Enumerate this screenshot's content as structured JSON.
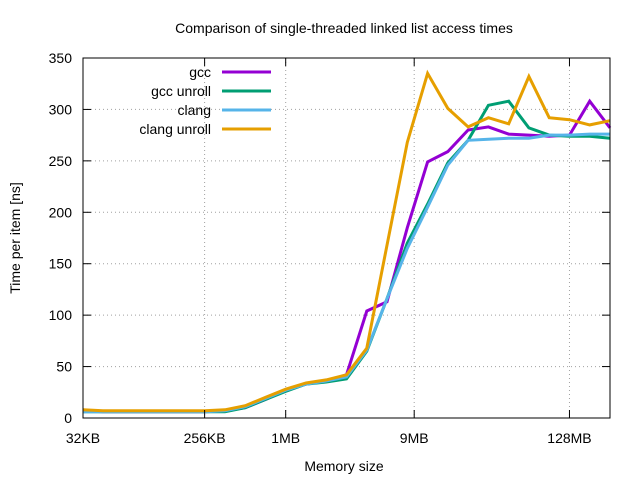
{
  "chart_data": {
    "type": "line",
    "title": "Comparison of single-threaded linked list access times",
    "xlabel": "Memory size",
    "ylabel": "Time per item [ns]",
    "xscale": "log2",
    "x_unit": "KB",
    "xlim": [
      32,
      262144
    ],
    "ylim": [
      0,
      350
    ],
    "grid": true,
    "legend_position": "top-left",
    "x_ticks": [
      {
        "value": 32,
        "label": "32KB"
      },
      {
        "value": 256,
        "label": "256KB"
      },
      {
        "value": 1024,
        "label": "1MB"
      },
      {
        "value": 9216,
        "label": "9MB"
      },
      {
        "value": 131072,
        "label": "128MB"
      }
    ],
    "y_ticks": [
      0,
      50,
      100,
      150,
      200,
      250,
      300,
      350
    ],
    "x": [
      32,
      45,
      64,
      91,
      128,
      181,
      256,
      362,
      512,
      724,
      1024,
      1448,
      2048,
      2896,
      4096,
      5793,
      8192,
      11585,
      16384,
      23170,
      32768,
      46341,
      65536,
      92682,
      131072,
      185364,
      262144
    ],
    "series": [
      {
        "name": "gcc",
        "color": "#9400d3",
        "values": [
          7,
          6,
          6,
          6,
          6,
          6,
          6,
          7,
          10,
          18,
          27,
          33,
          36,
          42,
          104,
          113,
          185,
          249,
          259,
          280,
          283,
          276,
          275,
          274,
          275,
          308,
          282
        ]
      },
      {
        "name": "gcc unroll",
        "color": "#009e73",
        "values": [
          6,
          6,
          6,
          6,
          6,
          6,
          6,
          6,
          10,
          18,
          26,
          33,
          35,
          38,
          65,
          116,
          170,
          208,
          248,
          270,
          304,
          308,
          282,
          275,
          274,
          274,
          272
        ]
      },
      {
        "name": "clang",
        "color": "#56b4e9",
        "values": [
          6,
          6,
          6,
          6,
          6,
          6,
          6,
          7,
          11,
          19,
          27,
          33,
          36,
          40,
          66,
          116,
          165,
          205,
          246,
          270,
          271,
          272,
          272,
          275,
          275,
          276,
          276
        ]
      },
      {
        "name": "clang unroll",
        "color": "#e69f00",
        "values": [
          8,
          7,
          7,
          7,
          7,
          7,
          7,
          8,
          12,
          20,
          28,
          34,
          37,
          42,
          68,
          168,
          268,
          335,
          301,
          283,
          292,
          286,
          332,
          292,
          290,
          285,
          289
        ]
      }
    ]
  }
}
